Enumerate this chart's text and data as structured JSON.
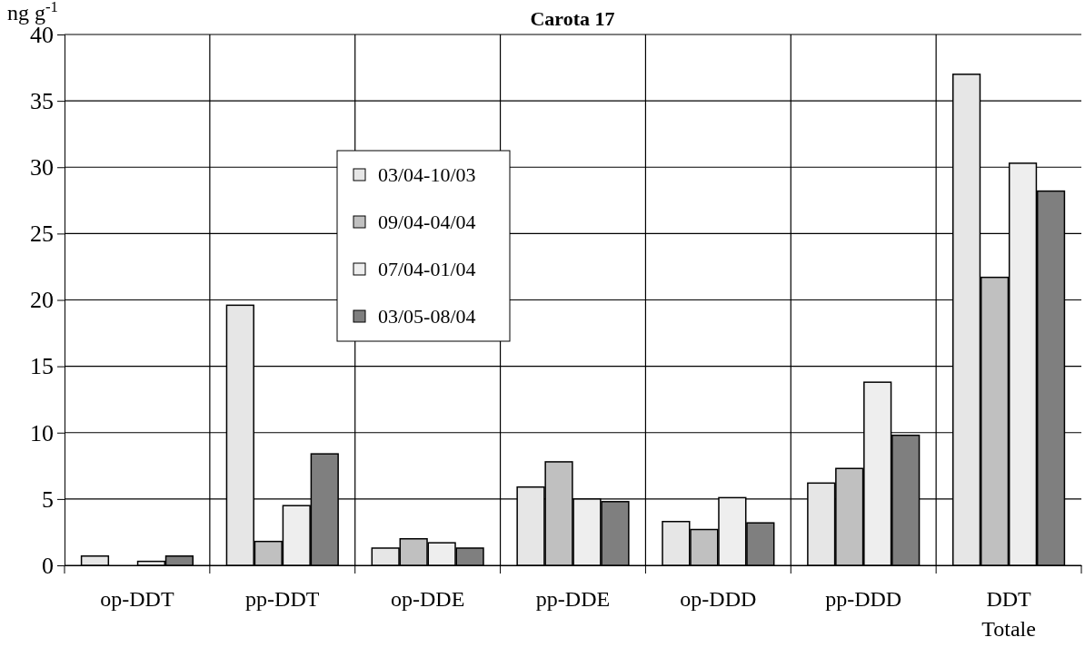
{
  "chart_data": {
    "type": "bar",
    "title": "Carota 17",
    "ylabel": "ng g$^{-1}$",
    "categories": [
      "op-DDT",
      "pp-DDT",
      "op-DDE",
      "pp-DDE",
      "op-DDD",
      "pp-DDD",
      "DDT Totale"
    ],
    "series": [
      {
        "name": "03/04-10/03",
        "color": "#e6e6e6",
        "values": [
          0.7,
          19.6,
          1.3,
          5.9,
          3.3,
          6.2,
          37
        ]
      },
      {
        "name": "09/04-04/04",
        "color": "#c0c0c0",
        "values": [
          0,
          1.8,
          2,
          7.8,
          2.7,
          7.3,
          21.7
        ]
      },
      {
        "name": "07/04-01/04",
        "color": "#eeeeee",
        "values": [
          0.3,
          4.5,
          1.7,
          5,
          5.1,
          13.8,
          30.3
        ]
      },
      {
        "name": "03/05-08/04",
        "color": "#7f7f7f",
        "values": [
          0.7,
          8.4,
          1.3,
          4.8,
          3.2,
          9.8,
          28.2
        ]
      }
    ],
    "ylim": [
      0,
      40
    ],
    "yticks": [
      0,
      5,
      10,
      15,
      20,
      25,
      30,
      35,
      40
    ],
    "grid": true,
    "legend": "top left"
  }
}
